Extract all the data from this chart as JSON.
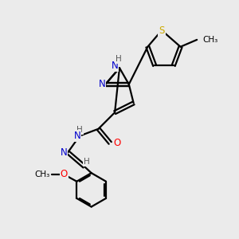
{
  "background_color": "#ebebeb",
  "bond_color": "#000000",
  "atom_colors": {
    "N": "#0000cc",
    "O": "#ff0000",
    "S": "#ccaa00",
    "C": "#000000",
    "H": "#555555"
  },
  "figsize": [
    3.0,
    3.0
  ],
  "dpi": 100
}
